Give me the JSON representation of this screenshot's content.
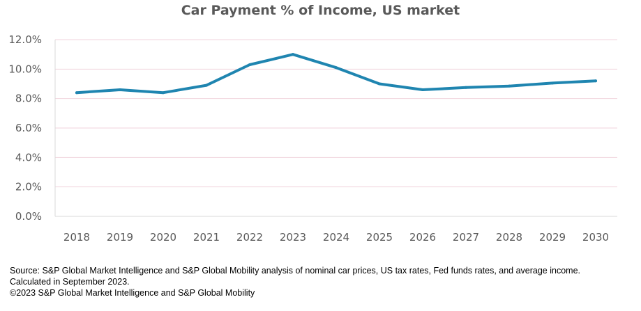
{
  "colors": {
    "line": "#1f85b0",
    "grid": "#f0d3dc",
    "text": "#595959"
  },
  "chart_data": {
    "type": "line",
    "title": "Car Payment % of Income, US market",
    "xlabel": "",
    "ylabel": "",
    "categories": [
      "2018",
      "2019",
      "2020",
      "2021",
      "2022",
      "2023",
      "2024",
      "2025",
      "2026",
      "2027",
      "2028",
      "2029",
      "2030"
    ],
    "series": [
      {
        "name": "Car Payment % of Income",
        "values": [
          8.4,
          8.6,
          8.4,
          8.9,
          10.3,
          11.0,
          10.1,
          9.0,
          8.6,
          8.75,
          8.85,
          9.05,
          9.2
        ]
      }
    ],
    "ylim": [
      0,
      12
    ],
    "yticks": [
      0,
      2,
      4,
      6,
      8,
      10,
      12
    ],
    "ytick_labels": [
      "0.0%",
      "2.0%",
      "4.0%",
      "6.0%",
      "8.0%",
      "10.0%",
      "12.0%"
    ],
    "grid": true,
    "legend": "none"
  },
  "footnote": {
    "line1": "Source: S&P Global Market Intelligence and S&P Global Mobility analysis of nominal car prices, US tax rates, Fed funds rates, and average income.",
    "line2": "Calculated in September 2023.",
    "line3": "©2023 S&P Global Market Intelligence and S&P Global Mobility"
  }
}
